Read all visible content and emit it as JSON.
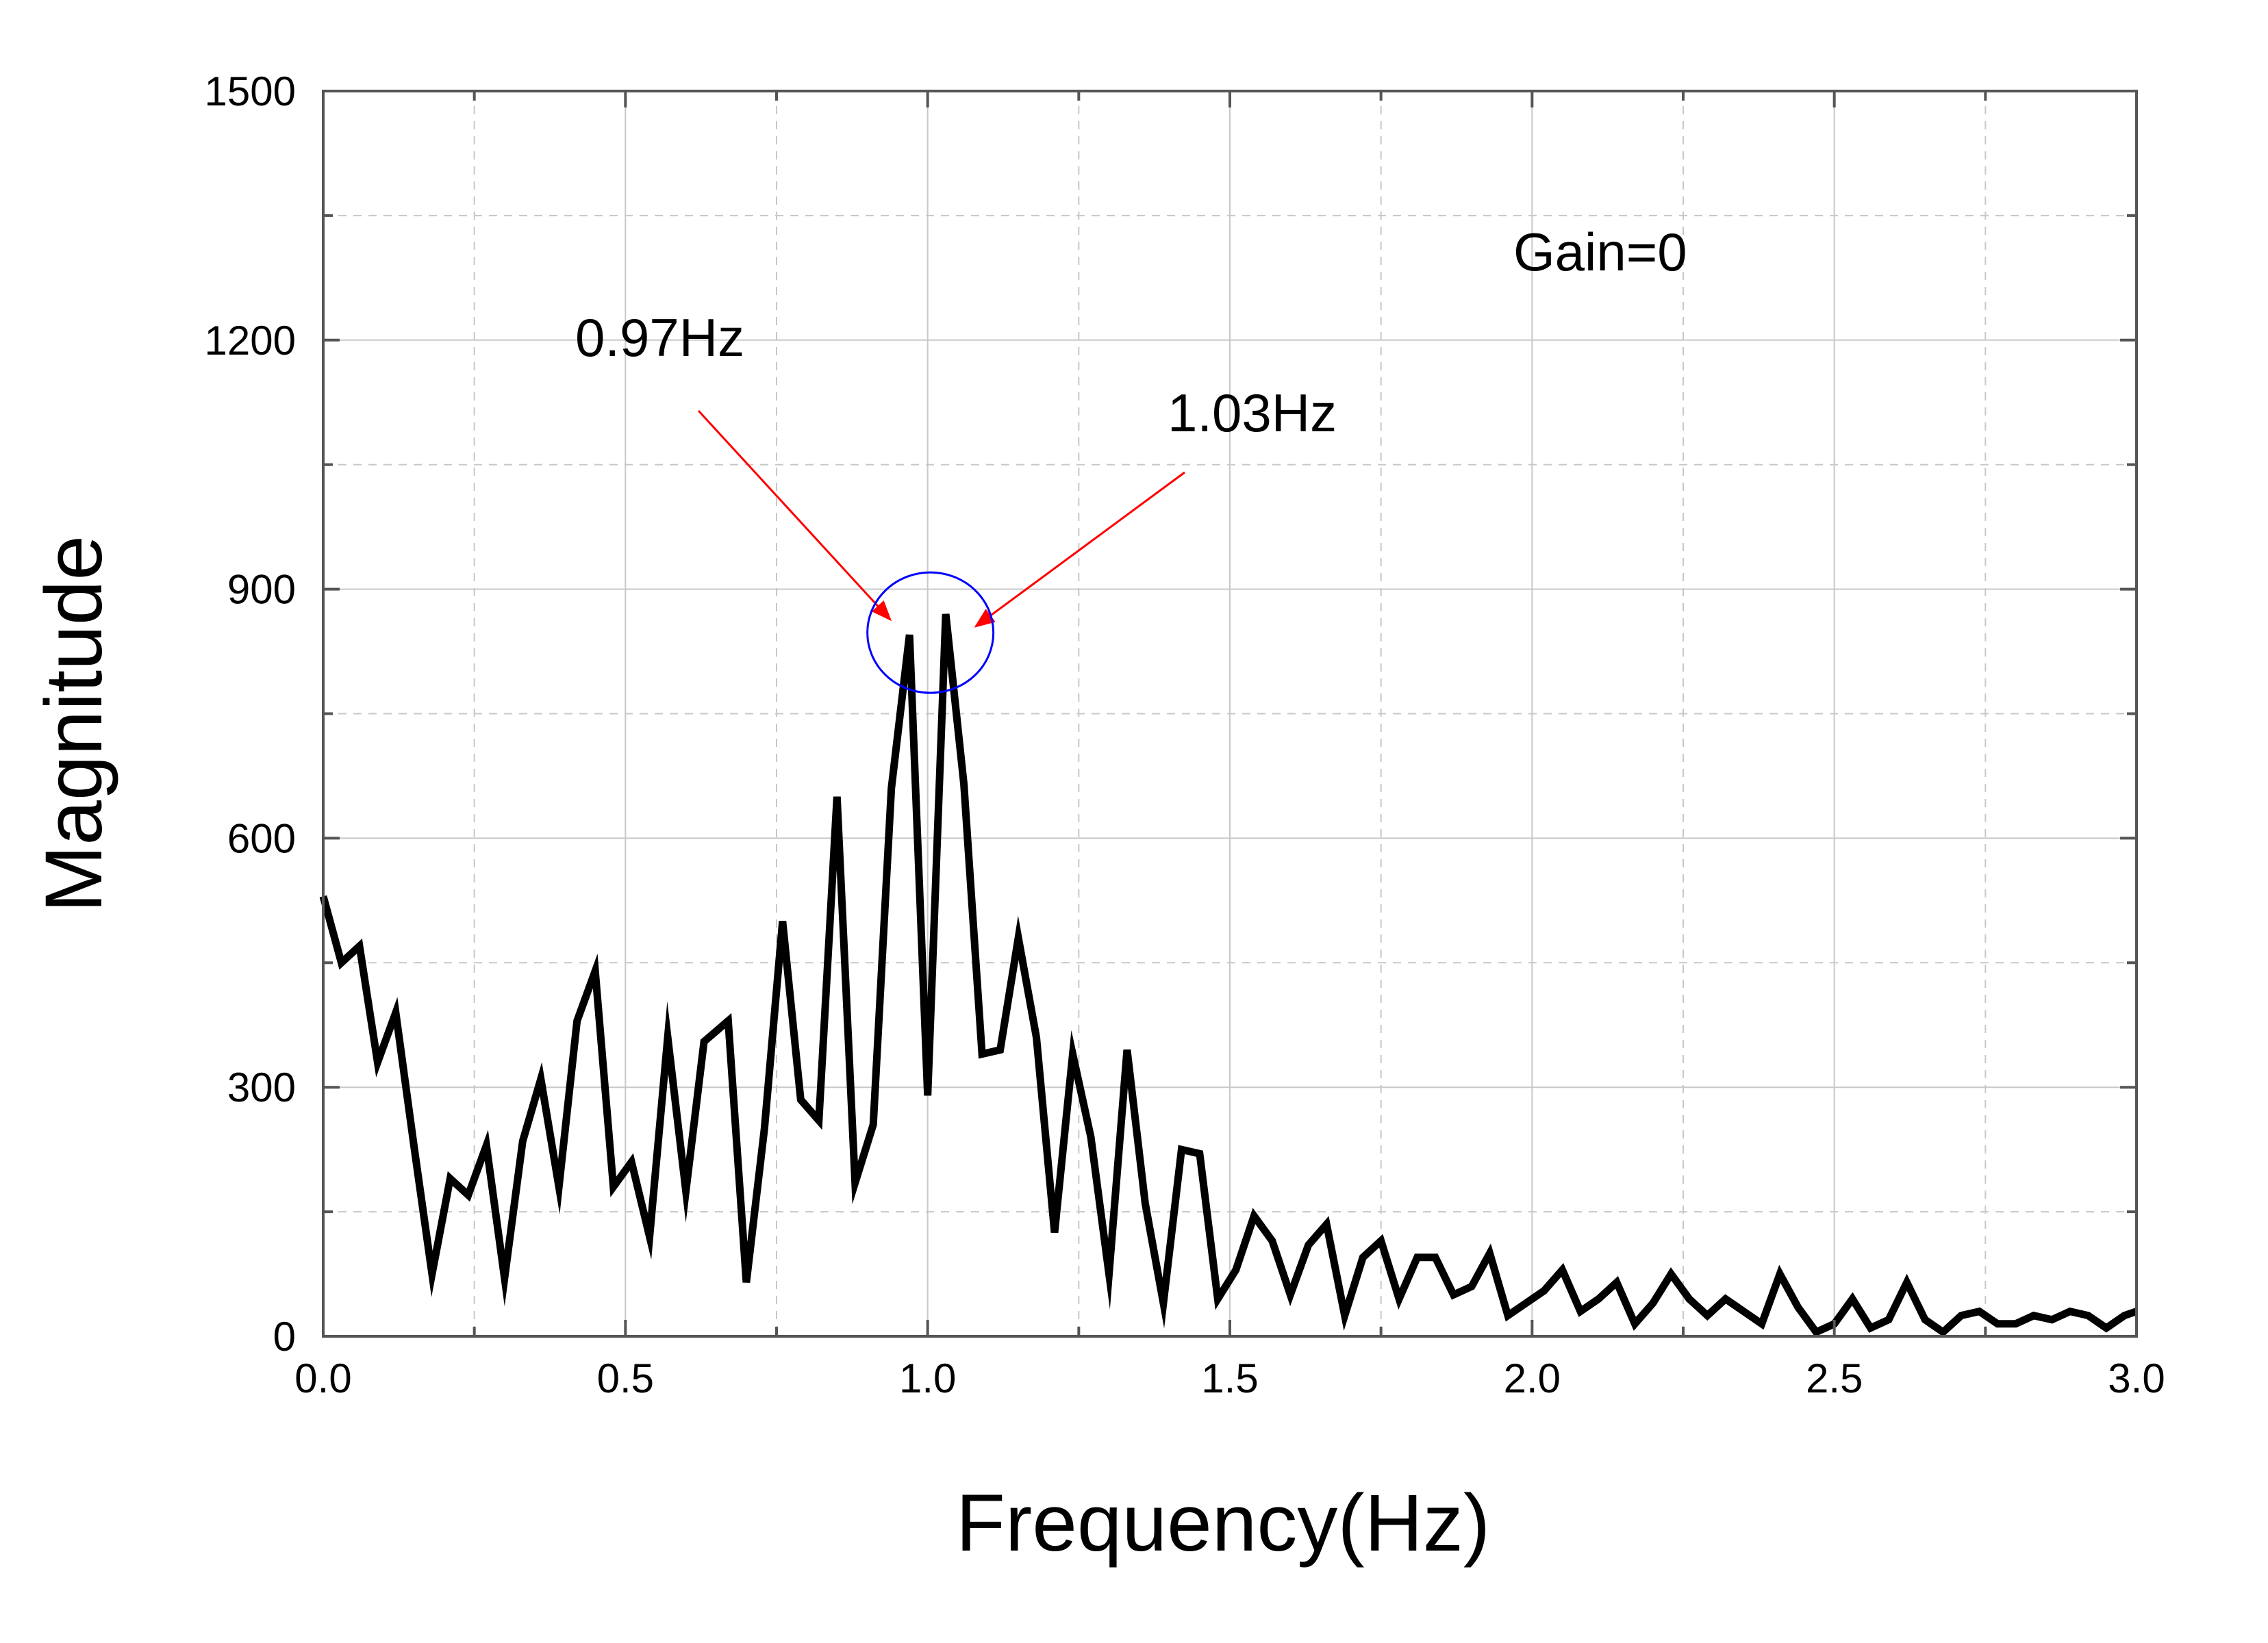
{
  "chart_data": {
    "type": "line",
    "title": "",
    "xlabel": "Frequency(Hz)",
    "ylabel": "Magnitude",
    "xlim": [
      0,
      3.0
    ],
    "ylim": [
      0,
      1500
    ],
    "x_ticks": [
      "0.0",
      "0.5",
      "1.0",
      "1.5",
      "2.0",
      "2.5",
      "3.0"
    ],
    "y_ticks": [
      "0",
      "300",
      "600",
      "900",
      "1200",
      "1500"
    ],
    "grid": true,
    "series": [
      {
        "color": "#000000",
        "x": [
          0.0,
          0.03,
          0.06,
          0.09,
          0.12,
          0.15,
          0.18,
          0.21,
          0.24,
          0.27,
          0.3,
          0.33,
          0.36,
          0.39,
          0.42,
          0.45,
          0.48,
          0.51,
          0.54,
          0.57,
          0.6,
          0.63,
          0.67,
          0.7,
          0.73,
          0.76,
          0.79,
          0.82,
          0.85,
          0.88,
          0.91,
          0.94,
          0.97,
          1.0,
          1.03,
          1.06,
          1.09,
          1.12,
          1.15,
          1.18,
          1.21,
          1.24,
          1.27,
          1.3,
          1.33,
          1.36,
          1.39,
          1.42,
          1.45,
          1.48,
          1.51,
          1.54,
          1.57,
          1.6,
          1.63,
          1.66,
          1.69,
          1.72,
          1.75,
          1.78,
          1.81,
          1.84,
          1.87,
          1.9,
          1.93,
          1.96,
          1.99,
          2.02,
          2.05,
          2.08,
          2.11,
          2.14,
          2.17,
          2.2,
          2.23,
          2.26,
          2.29,
          2.32,
          2.35,
          2.38,
          2.41,
          2.44,
          2.47,
          2.5,
          2.53,
          2.56,
          2.59,
          2.62,
          2.65,
          2.68,
          2.71,
          2.74,
          2.77,
          2.8,
          2.83,
          2.86,
          2.89,
          2.92,
          2.95,
          2.98,
          3.0
        ],
        "y": [
          530,
          450,
          470,
          330,
          390,
          230,
          75,
          190,
          170,
          230,
          70,
          235,
          310,
          180,
          380,
          440,
          180,
          210,
          120,
          360,
          175,
          355,
          380,
          65,
          250,
          500,
          285,
          260,
          650,
          185,
          255,
          660,
          845,
          290,
          870,
          665,
          340,
          345,
          480,
          360,
          125,
          340,
          240,
          75,
          345,
          160,
          40,
          225,
          220,
          45,
          80,
          145,
          115,
          50,
          110,
          135,
          25,
          95,
          115,
          45,
          95,
          95,
          50,
          60,
          100,
          25,
          40,
          55,
          80,
          30,
          45,
          65,
          15,
          40,
          75,
          45,
          25,
          45,
          30,
          15,
          75,
          35,
          5,
          15,
          45,
          10,
          20,
          65,
          20,
          5,
          25,
          30,
          15,
          15,
          25,
          20,
          30,
          25,
          10,
          25,
          30
        ]
      }
    ],
    "annotations": [
      {
        "text": "0.97Hz",
        "x": 0.97,
        "y": 845
      },
      {
        "text": "1.03Hz",
        "x": 1.03,
        "y": 870
      },
      {
        "text": "Gain=0"
      }
    ],
    "accent_colors": {
      "arrow": "#ff0000",
      "highlight_circle": "#0000ff"
    }
  }
}
